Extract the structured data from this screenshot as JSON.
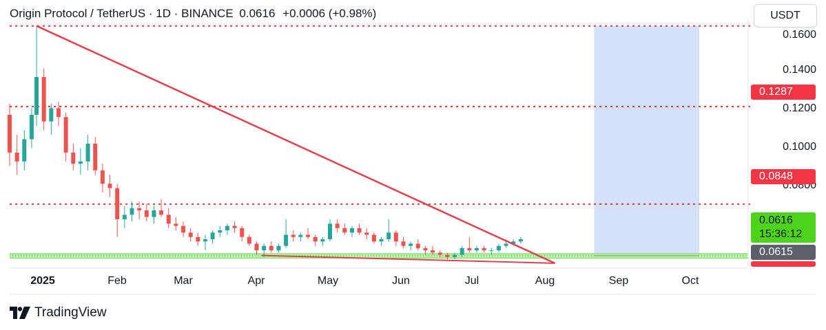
{
  "header": {
    "symbol": "Origin Protocol / TetherUS · 1D · BINANCE",
    "price": "0.0616",
    "change": "+0.0006 (+0.98%)"
  },
  "unit_button": "USDT",
  "brand": {
    "name": "TradingView",
    "logo_icon": "tradingview-logo-icon"
  },
  "price_labels": [
    "0.1600",
    "0.1400",
    "0.1200",
    "0.1000",
    "0.0800"
  ],
  "time_labels": [
    "2025",
    "Feb",
    "Mar",
    "Apr",
    "May",
    "Jun",
    "Jul",
    "Aug",
    "Sep",
    "Oct"
  ],
  "tags": {
    "level_top": "0.1287",
    "level_mid": "0.0848",
    "last_price": "0.0616",
    "countdown": "15:36:12",
    "support": "0.0615"
  },
  "colors": {
    "up": "#26a69a",
    "down": "#ef5350",
    "trendline": "#e0404f",
    "level_line": "#e53935",
    "profit_zone": "#d4e1fb",
    "loss_zone": "#fbd5da",
    "support_zone": "#b9f0a9"
  },
  "chart_data": {
    "type": "candlestick",
    "title": "Origin Protocol / TetherUS · 1D · BINANCE",
    "ylim": [
      0.056,
      0.168
    ],
    "y_ticks": [
      0.16,
      0.14,
      0.12,
      0.1,
      0.08
    ],
    "x_range": [
      "2024-12-20",
      "2025-10-18"
    ],
    "horizontal_levels": [
      0.165,
      0.1287,
      0.0848
    ],
    "support_zone": [
      0.0605,
      0.0625
    ],
    "trendline_upper": {
      "from": [
        "2024-12-31",
        0.165
      ],
      "to": [
        "2025-07-31",
        0.0582
      ]
    },
    "trendline_lower": {
      "from": [
        "2025-04-02",
        0.0617
      ],
      "to": [
        "2025-07-31",
        0.0582
      ]
    },
    "position": {
      "start": "2025-08-16",
      "end": "2025-09-28",
      "entry": 0.0616,
      "target": 0.165,
      "stop": 0.061
    },
    "candles_approx": [
      [
        "2024-12-20",
        0.125,
        0.13,
        0.102,
        0.108
      ],
      [
        "2024-12-23",
        0.108,
        0.116,
        0.098,
        0.104
      ],
      [
        "2024-12-26",
        0.104,
        0.118,
        0.1,
        0.114
      ],
      [
        "2024-12-29",
        0.114,
        0.128,
        0.11,
        0.125
      ],
      [
        "2024-12-31",
        0.125,
        0.165,
        0.12,
        0.142
      ],
      [
        "2025-01-03",
        0.142,
        0.146,
        0.118,
        0.122
      ],
      [
        "2025-01-06",
        0.122,
        0.13,
        0.116,
        0.128
      ],
      [
        "2025-01-09",
        0.128,
        0.131,
        0.12,
        0.124
      ],
      [
        "2025-01-12",
        0.124,
        0.126,
        0.104,
        0.108
      ],
      [
        "2025-01-15",
        0.108,
        0.112,
        0.1,
        0.103
      ],
      [
        "2025-01-18",
        0.103,
        0.11,
        0.098,
        0.104
      ],
      [
        "2025-01-21",
        0.104,
        0.116,
        0.1,
        0.112
      ],
      [
        "2025-01-24",
        0.112,
        0.115,
        0.098,
        0.1
      ],
      [
        "2025-01-27",
        0.1,
        0.103,
        0.09,
        0.094
      ],
      [
        "2025-01-30",
        0.094,
        0.098,
        0.088,
        0.092
      ],
      [
        "2025-02-02",
        0.092,
        0.094,
        0.07,
        0.078
      ],
      [
        "2025-02-05",
        0.078,
        0.084,
        0.074,
        0.08
      ],
      [
        "2025-02-08",
        0.08,
        0.086,
        0.077,
        0.083
      ],
      [
        "2025-02-11",
        0.083,
        0.086,
        0.078,
        0.082
      ],
      [
        "2025-02-14",
        0.082,
        0.085,
        0.077,
        0.079
      ],
      [
        "2025-02-17",
        0.079,
        0.084,
        0.076,
        0.082
      ],
      [
        "2025-02-20",
        0.082,
        0.087,
        0.079,
        0.08
      ],
      [
        "2025-02-23",
        0.08,
        0.083,
        0.074,
        0.076
      ],
      [
        "2025-02-26",
        0.076,
        0.079,
        0.073,
        0.075
      ],
      [
        "2025-03-01",
        0.075,
        0.077,
        0.07,
        0.072
      ],
      [
        "2025-03-04",
        0.072,
        0.074,
        0.068,
        0.07
      ],
      [
        "2025-03-07",
        0.07,
        0.072,
        0.066,
        0.068
      ],
      [
        "2025-03-10",
        0.068,
        0.071,
        0.064,
        0.069
      ],
      [
        "2025-03-13",
        0.069,
        0.073,
        0.067,
        0.072
      ],
      [
        "2025-03-16",
        0.072,
        0.075,
        0.07,
        0.073
      ],
      [
        "2025-03-19",
        0.073,
        0.076,
        0.071,
        0.075
      ],
      [
        "2025-03-22",
        0.075,
        0.077,
        0.072,
        0.074
      ],
      [
        "2025-03-25",
        0.074,
        0.075,
        0.068,
        0.07
      ],
      [
        "2025-03-28",
        0.07,
        0.071,
        0.066,
        0.067
      ],
      [
        "2025-03-31",
        0.067,
        0.068,
        0.062,
        0.064
      ],
      [
        "2025-04-03",
        0.064,
        0.067,
        0.061,
        0.066
      ],
      [
        "2025-04-06",
        0.066,
        0.068,
        0.063,
        0.064
      ],
      [
        "2025-04-09",
        0.064,
        0.067,
        0.063,
        0.066
      ],
      [
        "2025-04-12",
        0.066,
        0.078,
        0.065,
        0.071
      ],
      [
        "2025-04-15",
        0.071,
        0.073,
        0.068,
        0.07
      ],
      [
        "2025-04-18",
        0.07,
        0.072,
        0.068,
        0.071
      ],
      [
        "2025-04-21",
        0.071,
        0.074,
        0.069,
        0.07
      ],
      [
        "2025-04-24",
        0.07,
        0.071,
        0.066,
        0.068
      ],
      [
        "2025-04-27",
        0.068,
        0.07,
        0.066,
        0.069
      ],
      [
        "2025-04-30",
        0.069,
        0.078,
        0.068,
        0.076
      ],
      [
        "2025-05-03",
        0.076,
        0.078,
        0.072,
        0.074
      ],
      [
        "2025-05-06",
        0.074,
        0.076,
        0.071,
        0.072
      ],
      [
        "2025-05-09",
        0.072,
        0.075,
        0.07,
        0.074
      ],
      [
        "2025-05-12",
        0.074,
        0.076,
        0.071,
        0.072
      ],
      [
        "2025-05-15",
        0.072,
        0.074,
        0.069,
        0.071
      ],
      [
        "2025-05-18",
        0.071,
        0.072,
        0.067,
        0.068
      ],
      [
        "2025-05-21",
        0.068,
        0.07,
        0.066,
        0.069
      ],
      [
        "2025-05-24",
        0.069,
        0.078,
        0.068,
        0.072
      ],
      [
        "2025-05-27",
        0.072,
        0.073,
        0.066,
        0.068
      ],
      [
        "2025-05-30",
        0.068,
        0.07,
        0.065,
        0.066
      ],
      [
        "2025-06-02",
        0.066,
        0.068,
        0.064,
        0.067
      ],
      [
        "2025-06-05",
        0.067,
        0.069,
        0.064,
        0.065
      ],
      [
        "2025-06-08",
        0.065,
        0.066,
        0.062,
        0.064
      ],
      [
        "2025-06-11",
        0.064,
        0.066,
        0.062,
        0.063
      ],
      [
        "2025-06-14",
        0.063,
        0.064,
        0.061,
        0.062
      ],
      [
        "2025-06-17",
        0.062,
        0.063,
        0.06,
        0.061
      ],
      [
        "2025-06-20",
        0.061,
        0.063,
        0.06,
        0.062
      ],
      [
        "2025-06-23",
        0.062,
        0.066,
        0.061,
        0.065
      ],
      [
        "2025-06-26",
        0.065,
        0.07,
        0.063,
        0.064
      ],
      [
        "2025-06-29",
        0.064,
        0.066,
        0.063,
        0.065
      ],
      [
        "2025-07-02",
        0.065,
        0.066,
        0.063,
        0.064
      ],
      [
        "2025-07-05",
        0.064,
        0.065,
        0.062,
        0.064
      ],
      [
        "2025-07-08",
        0.064,
        0.067,
        0.063,
        0.066
      ],
      [
        "2025-07-11",
        0.066,
        0.069,
        0.065,
        0.067
      ],
      [
        "2025-07-14",
        0.067,
        0.069,
        0.066,
        0.068
      ],
      [
        "2025-07-17",
        0.068,
        0.07,
        0.067,
        0.069
      ]
    ]
  }
}
